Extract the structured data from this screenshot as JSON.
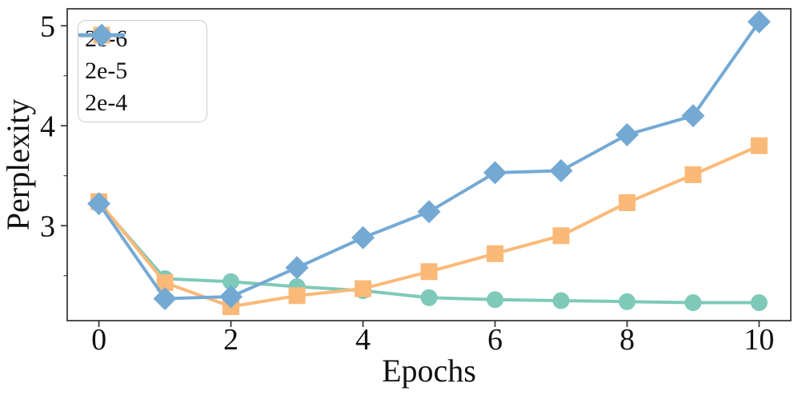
{
  "chart_data": {
    "type": "line",
    "title": "",
    "xlabel": "Epochs",
    "ylabel": "Perplexity",
    "x": [
      0,
      1,
      2,
      3,
      4,
      5,
      6,
      7,
      8,
      9,
      10
    ],
    "series": [
      {
        "name": "2e-6",
        "marker": "circle",
        "color": "#7EC9B8",
        "values": [
          3.23,
          2.47,
          2.44,
          2.39,
          2.35,
          2.28,
          2.26,
          2.25,
          2.24,
          2.23,
          2.23
        ]
      },
      {
        "name": "2e-5",
        "marker": "square",
        "color": "#FBB978",
        "values": [
          3.24,
          2.43,
          2.19,
          2.3,
          2.37,
          2.54,
          2.72,
          2.9,
          3.23,
          3.51,
          3.8
        ]
      },
      {
        "name": "2e-4",
        "marker": "diamond",
        "color": "#74A9D4",
        "values": [
          3.22,
          2.27,
          2.29,
          2.58,
          2.88,
          3.14,
          3.53,
          3.55,
          3.91,
          4.1,
          5.04
        ]
      }
    ],
    "xlim": [
      -0.48,
      10.48
    ],
    "ylim": [
      2.05,
      5.17
    ],
    "x_ticks": [
      0,
      2,
      4,
      6,
      8,
      10
    ],
    "y_ticks": [
      3,
      4,
      5
    ],
    "y_minor_ticks": [
      2.5,
      3.5,
      4.5
    ],
    "legend_position": "upper-left",
    "grid": false,
    "axis_color": "#3b3b3b",
    "text_color": "#111111",
    "background_color": "#ffffff"
  }
}
